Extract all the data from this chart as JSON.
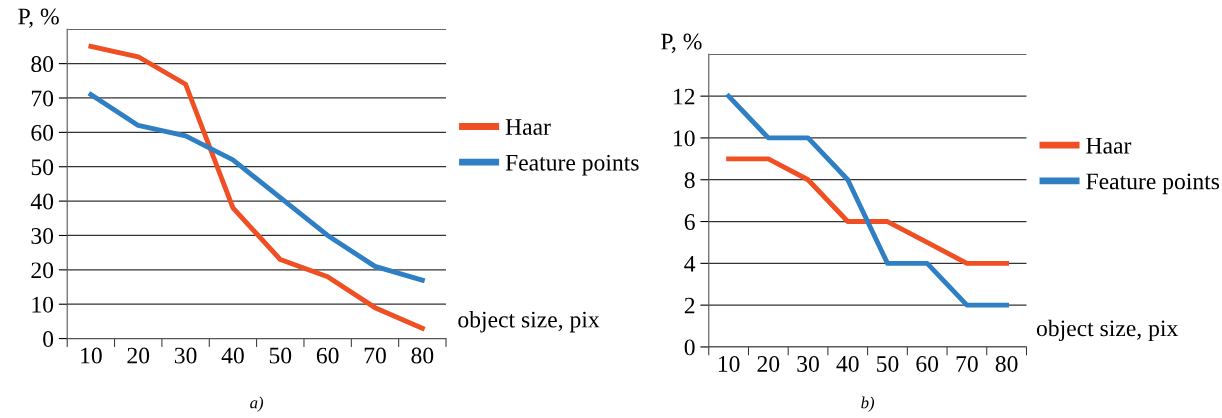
{
  "chart_data": [
    {
      "type": "line",
      "categories": [
        "10",
        "20",
        "30",
        "40",
        "50",
        "60",
        "70",
        "80"
      ],
      "ylabel": "P, %",
      "xlabel": "object size, pix",
      "ylim": [
        0,
        90
      ],
      "yticks": [
        0,
        10,
        20,
        30,
        40,
        50,
        60,
        70,
        80
      ],
      "grid": "y",
      "legend": "right",
      "marker": "none",
      "line_style": "solid",
      "annotations": [
        "a)"
      ],
      "series": [
        {
          "name": "Haar",
          "color": "#f04e23",
          "values": [
            85,
            82,
            74,
            38,
            23,
            18,
            9,
            3
          ]
        },
        {
          "name": "Feature points",
          "color": "#2e7fc4",
          "values": [
            71,
            62,
            59,
            52,
            41,
            30,
            21,
            17
          ]
        }
      ]
    },
    {
      "type": "line",
      "categories": [
        "10",
        "20",
        "30",
        "40",
        "50",
        "60",
        "70",
        "80"
      ],
      "ylabel": "P, %",
      "xlabel": "object size, pix",
      "ylim": [
        0,
        14
      ],
      "yticks": [
        0,
        2,
        4,
        6,
        8,
        10,
        12
      ],
      "grid": "y",
      "legend": "right",
      "marker": "none",
      "line_style": "solid",
      "annotations": [
        "b)"
      ],
      "series": [
        {
          "name": "Haar",
          "color": "#f04e23",
          "values": [
            9,
            9,
            8,
            6,
            6,
            5,
            4,
            4
          ]
        },
        {
          "name": "Feature points",
          "color": "#2e7fc4",
          "values": [
            12,
            10,
            10,
            8,
            4,
            4,
            2,
            2
          ]
        }
      ]
    }
  ]
}
